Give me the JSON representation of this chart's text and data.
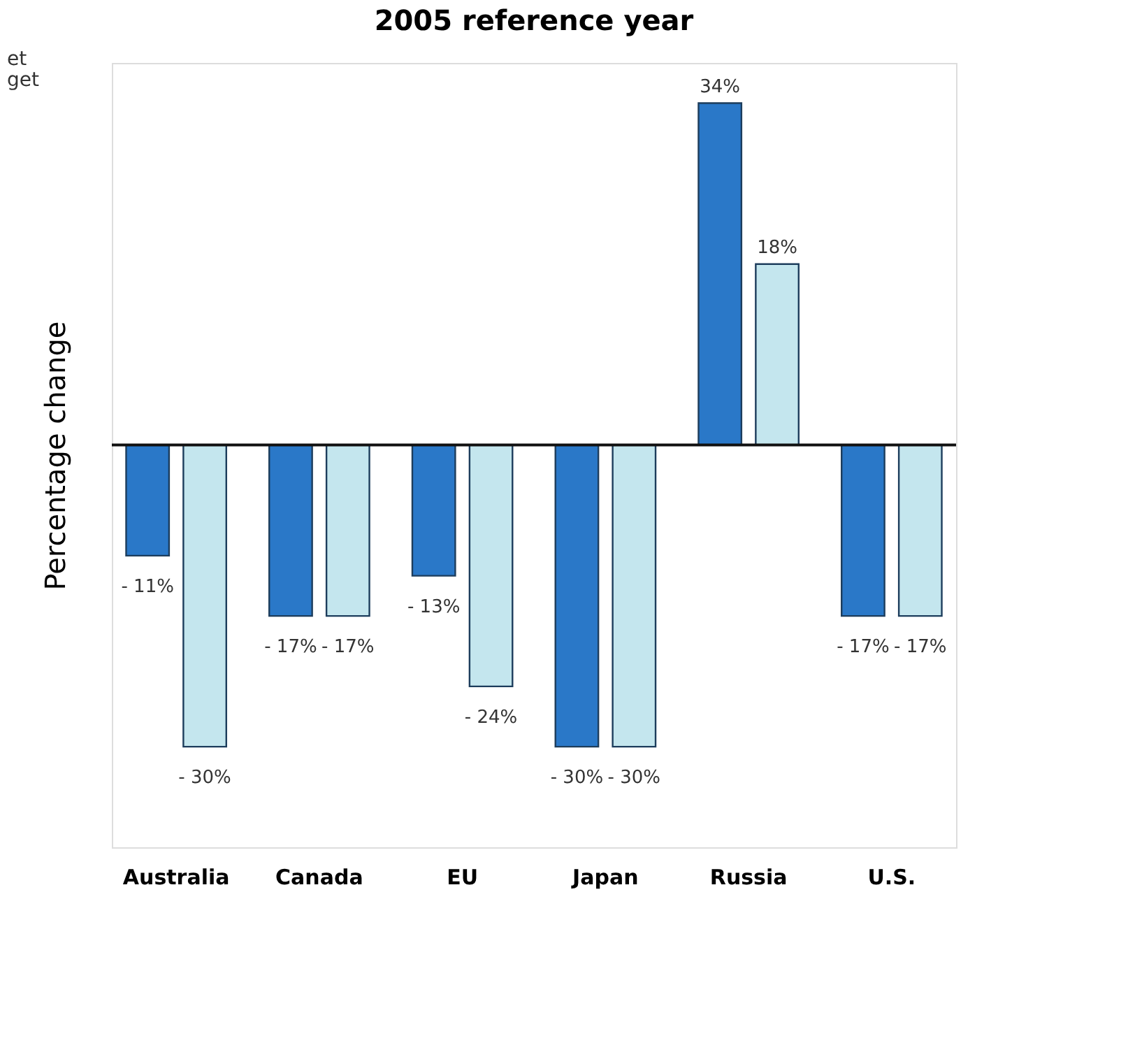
{
  "chart_data": {
    "type": "bar",
    "title": "2005 reference year",
    "ylabel": "Percentage change",
    "categories": [
      "Australia",
      "Canada",
      "EU",
      "Japan",
      "Russia",
      "U.S."
    ],
    "series": [
      {
        "color": "#2a78c8",
        "values": [
          -11,
          -17,
          -13,
          -30,
          34,
          -17
        ],
        "value_labels": [
          "- 11%",
          "- 17%",
          "- 13%",
          "- 30%",
          "34%",
          "- 17%"
        ]
      },
      {
        "color": "#c4e6ee",
        "values": [
          -30,
          -17,
          -24,
          -30,
          18,
          -17
        ],
        "value_labels": [
          "- 30%",
          "- 17%",
          "- 24%",
          "- 30%",
          "18%",
          "- 17%"
        ]
      }
    ],
    "ylim": [
      -40,
      38
    ],
    "tick_labels": "x",
    "grid": false,
    "annotations": [
      "et",
      "get"
    ]
  }
}
